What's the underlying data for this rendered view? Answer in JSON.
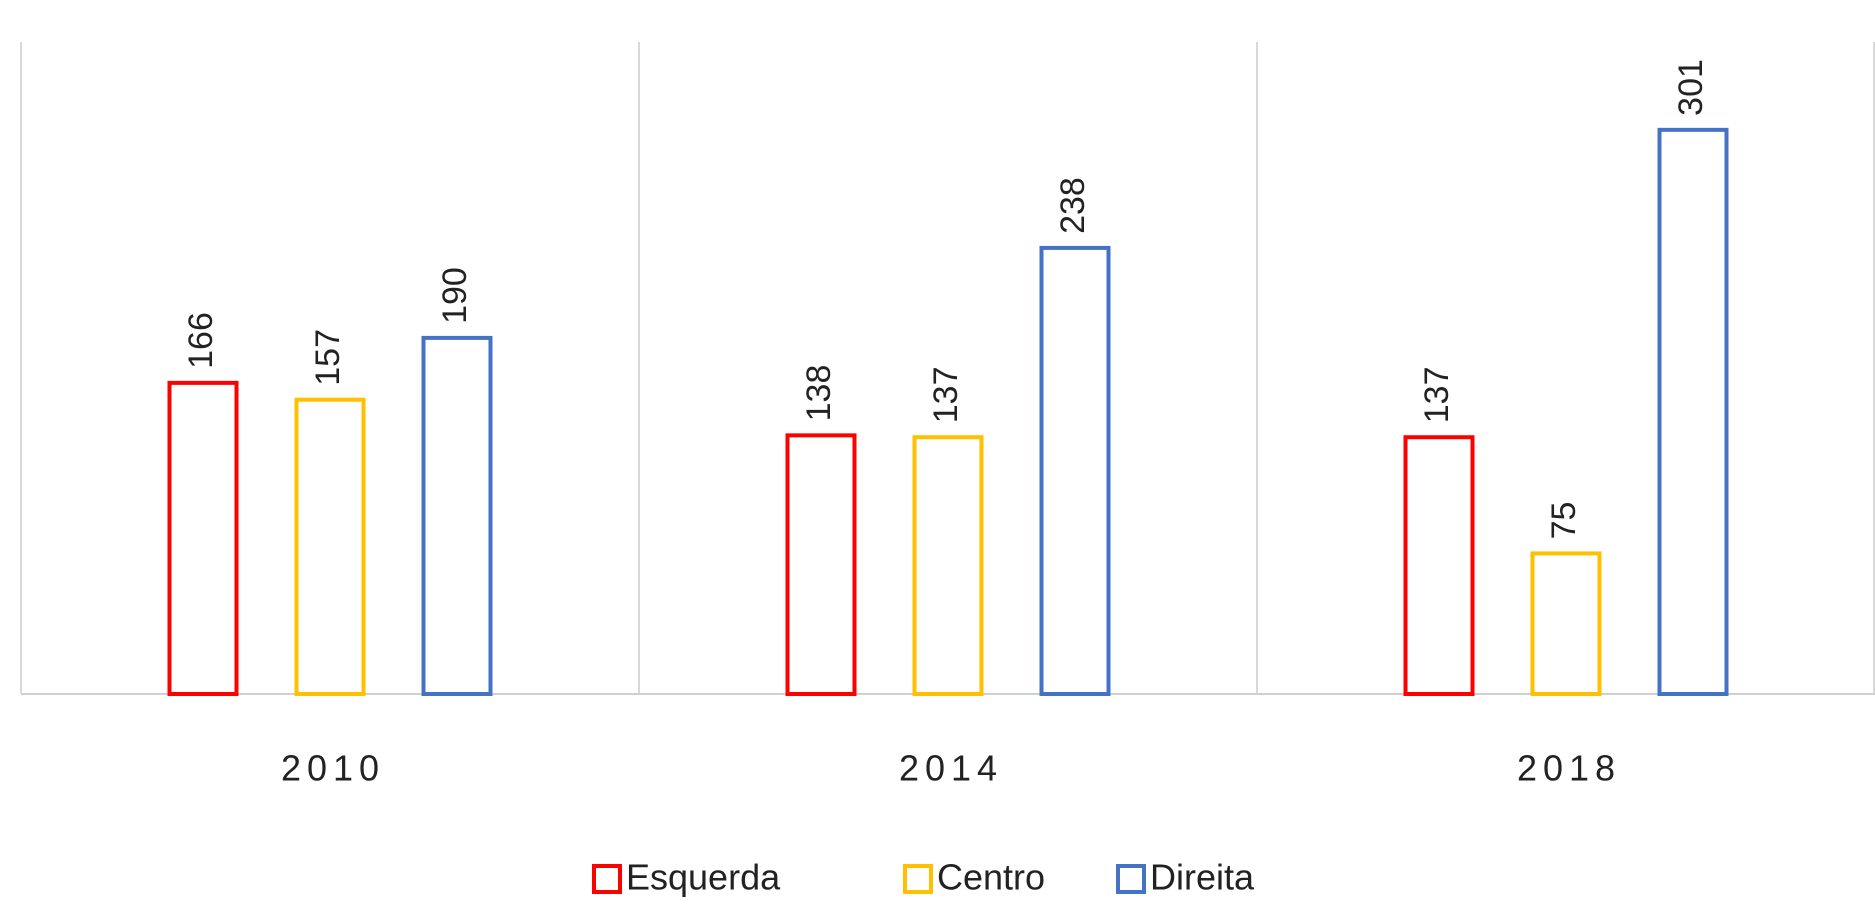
{
  "chart_data": {
    "type": "bar",
    "categories": [
      "2010",
      "2014",
      "2018"
    ],
    "series": [
      {
        "name": "Esquerda",
        "color": "#ff0000",
        "values": [
          166,
          138,
          137
        ]
      },
      {
        "name": "Centro",
        "color": "#ffc000",
        "values": [
          157,
          137,
          75
        ]
      },
      {
        "name": "Direita",
        "color": "#4472c4",
        "values": [
          190,
          238,
          301
        ]
      }
    ],
    "ylim": [
      0,
      350
    ],
    "legend": "bottom"
  }
}
